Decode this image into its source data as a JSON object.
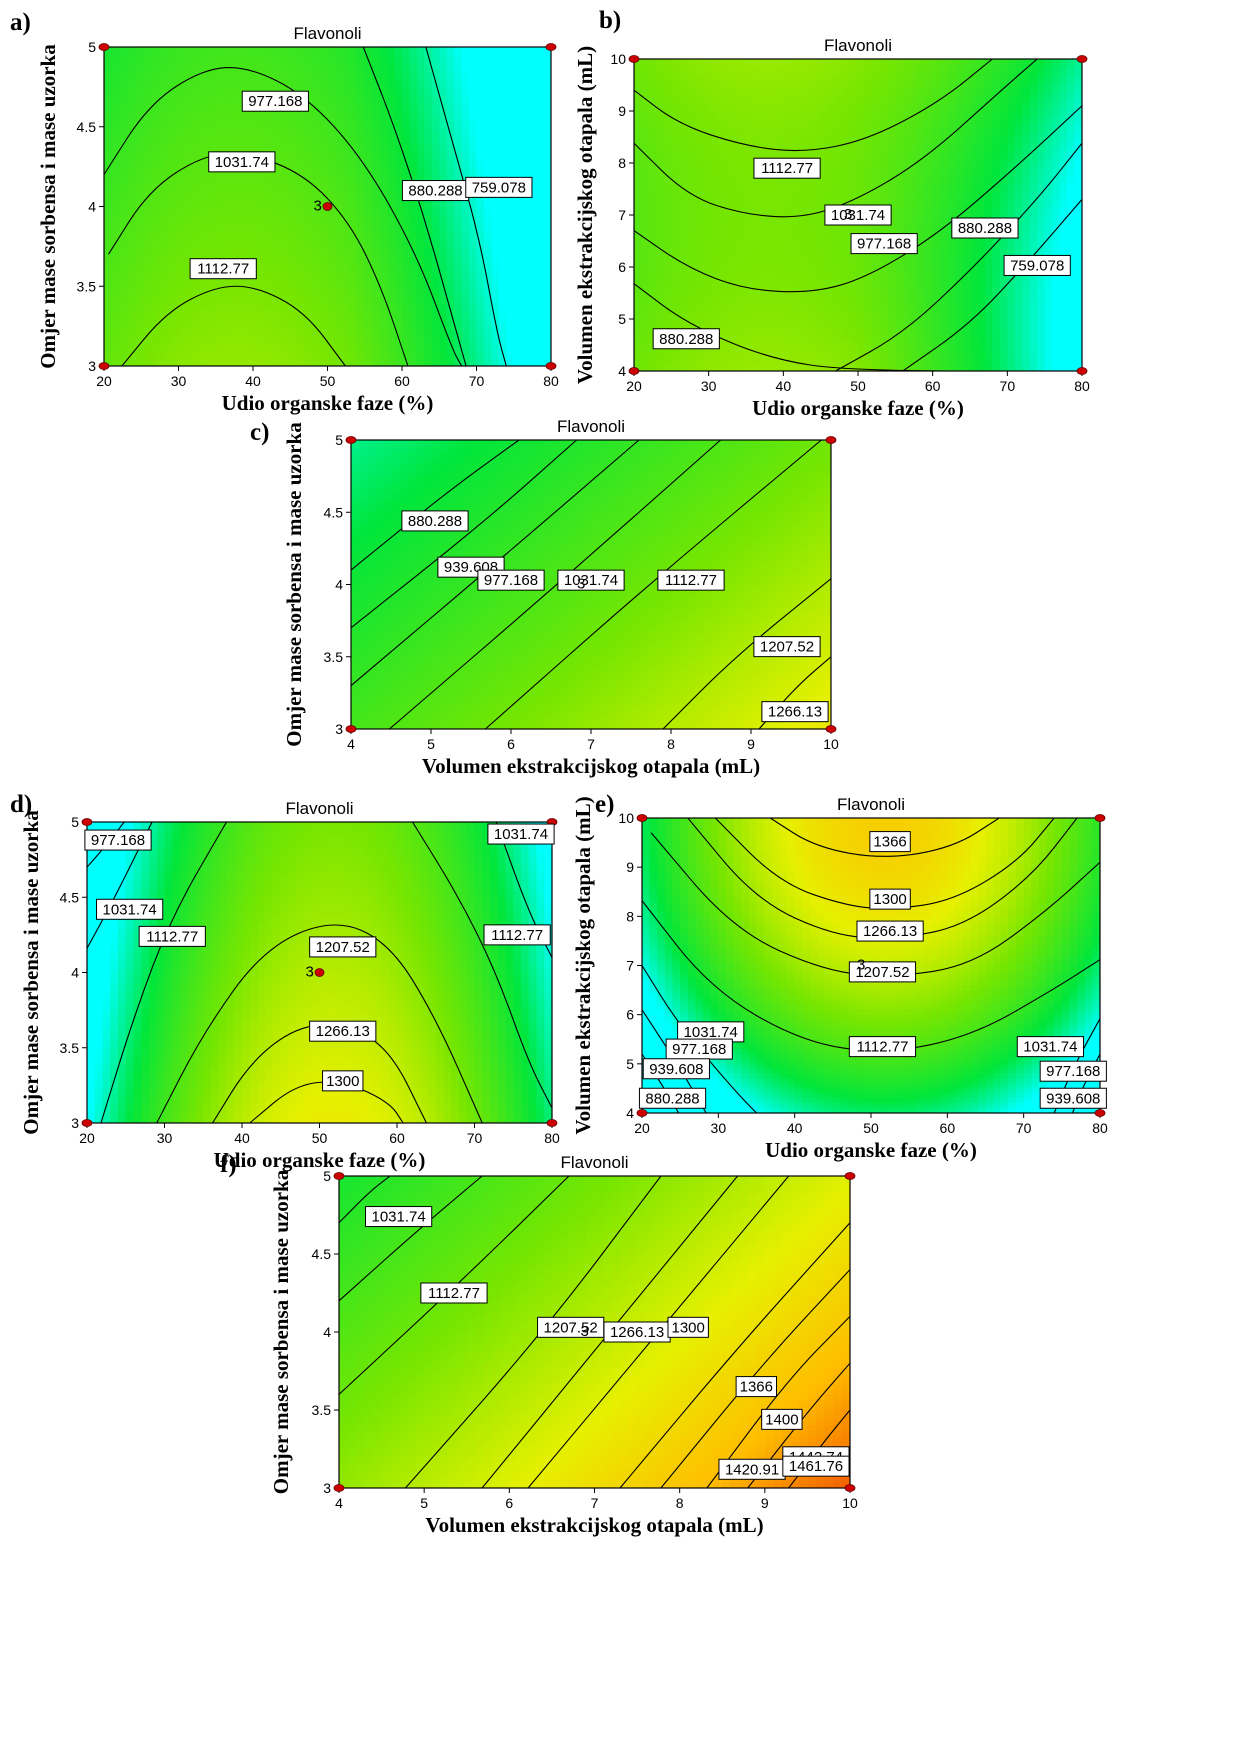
{
  "chart_data": [
    {
      "id": "a",
      "panel_letter": "a)",
      "type": "contour",
      "title": "Flavonoli",
      "xlabel": "Udio organske faze (%)",
      "ylabel": "Omjer mase sorbensa i mase uzorka",
      "xlim": [
        20,
        80
      ],
      "ylim": [
        3,
        5
      ],
      "xticks": [
        "20",
        "30",
        "40",
        "50",
        "60",
        "70",
        "80"
      ],
      "yticks": [
        "3",
        "3.5",
        "4",
        "4.5",
        "5"
      ],
      "contour_labels": [
        {
          "text": "977.168",
          "x": 43,
          "y": 4.66
        },
        {
          "text": "1031.74",
          "x": 38.5,
          "y": 4.28
        },
        {
          "text": "880.288",
          "x": 64.5,
          "y": 4.1
        },
        {
          "text": "759.078",
          "x": 73,
          "y": 4.12
        },
        {
          "text": "1112.77",
          "x": 36,
          "y": 3.61
        }
      ],
      "design_points": [
        [
          20,
          3
        ],
        [
          20,
          5
        ],
        [
          80,
          3
        ],
        [
          80,
          5
        ]
      ],
      "center_point": {
        "x": 50,
        "y": 4,
        "count": "3"
      }
    },
    {
      "id": "b",
      "panel_letter": "b)",
      "type": "contour",
      "title": "Flavonoli",
      "xlabel": "Udio organske faze (%)",
      "ylabel": "Volumen ekstrakcijskog otapala (mL)",
      "xlim": [
        20,
        80
      ],
      "ylim": [
        4,
        10
      ],
      "xticks": [
        "20",
        "30",
        "40",
        "50",
        "60",
        "70",
        "80"
      ],
      "yticks": [
        "4",
        "5",
        "6",
        "7",
        "8",
        "9",
        "10"
      ],
      "contour_labels": [
        {
          "text": "1112.77",
          "x": 40.5,
          "y": 7.9
        },
        {
          "text": "1031.74",
          "x": 50,
          "y": 7.0
        },
        {
          "text": "977.168",
          "x": 53.5,
          "y": 6.45
        },
        {
          "text": "880.288",
          "x": 67,
          "y": 6.75
        },
        {
          "text": "759.078",
          "x": 74,
          "y": 6.03
        },
        {
          "text": "880.288",
          "x": 27,
          "y": 4.62
        }
      ],
      "design_points": [
        [
          20,
          4
        ],
        [
          20,
          10
        ],
        [
          80,
          4
        ],
        [
          80,
          10
        ]
      ],
      "center_point": {
        "x": 50,
        "y": 7,
        "count": "3"
      }
    },
    {
      "id": "c",
      "panel_letter": "c)",
      "type": "contour",
      "title": "Flavonoli",
      "xlabel": "Volumen ekstrakcijskog otapala (mL)",
      "ylabel": "Omjer mase sorbensa i mase uzorka",
      "xlim": [
        4,
        10
      ],
      "ylim": [
        3,
        5
      ],
      "xticks": [
        "4",
        "5",
        "6",
        "7",
        "8",
        "9",
        "10"
      ],
      "yticks": [
        "3",
        "3.5",
        "4",
        "4.5",
        "5"
      ],
      "contour_labels": [
        {
          "text": "880.288",
          "x": 5.05,
          "y": 4.44
        },
        {
          "text": "939.608",
          "x": 5.5,
          "y": 4.12
        },
        {
          "text": "977.168",
          "x": 6.0,
          "y": 4.03
        },
        {
          "text": "1031.74",
          "x": 7.0,
          "y": 4.03
        },
        {
          "text": "1112.77",
          "x": 8.25,
          "y": 4.03
        },
        {
          "text": "1207.52",
          "x": 9.45,
          "y": 3.57
        },
        {
          "text": "1266.13",
          "x": 9.55,
          "y": 3.12
        }
      ],
      "design_points": [
        [
          4,
          3
        ],
        [
          4,
          5
        ],
        [
          10,
          3
        ],
        [
          10,
          5
        ]
      ],
      "center_point": {
        "x": 7,
        "y": 4,
        "count": "3"
      }
    },
    {
      "id": "d",
      "panel_letter": "d)",
      "type": "contour",
      "title": "Flavonoli",
      "xlabel": "Udio organske faze (%)",
      "ylabel": "Omjer mase sorbensa i mase uzorka",
      "xlim": [
        20,
        80
      ],
      "ylim": [
        3,
        5
      ],
      "xticks": [
        "20",
        "30",
        "40",
        "50",
        "60",
        "70",
        "80"
      ],
      "yticks": [
        "3",
        "3.5",
        "4",
        "4.5",
        "5"
      ],
      "contour_labels": [
        {
          "text": "977.168",
          "x": 24,
          "y": 4.88
        },
        {
          "text": "1031.74",
          "x": 25.5,
          "y": 4.42
        },
        {
          "text": "1112.77",
          "x": 31,
          "y": 4.24
        },
        {
          "text": "1207.52",
          "x": 53,
          "y": 4.17
        },
        {
          "text": "1266.13",
          "x": 53,
          "y": 3.61
        },
        {
          "text": "1300",
          "x": 53,
          "y": 3.28
        },
        {
          "text": "1112.77",
          "x": 75.5,
          "y": 4.25
        },
        {
          "text": "1031.74",
          "x": 76,
          "y": 4.92
        }
      ],
      "design_points": [
        [
          20,
          3
        ],
        [
          20,
          5
        ],
        [
          80,
          3
        ],
        [
          80,
          5
        ]
      ],
      "center_point": {
        "x": 50,
        "y": 4,
        "count": "3"
      }
    },
    {
      "id": "e",
      "panel_letter": "e)",
      "type": "contour",
      "title": "Flavonoli",
      "xlabel": "Udio organske faze (%)",
      "ylabel": "Volumen ekstrakcijskog otapala (mL)",
      "xlim": [
        20,
        80
      ],
      "ylim": [
        4,
        10
      ],
      "xticks": [
        "20",
        "30",
        "40",
        "50",
        "60",
        "70",
        "80"
      ],
      "yticks": [
        "4",
        "5",
        "6",
        "7",
        "8",
        "9",
        "10"
      ],
      "contour_labels": [
        {
          "text": "1366",
          "x": 52.5,
          "y": 9.52
        },
        {
          "text": "1300",
          "x": 52.5,
          "y": 8.35
        },
        {
          "text": "1266.13",
          "x": 52.5,
          "y": 7.7
        },
        {
          "text": "1207.52",
          "x": 51.5,
          "y": 6.87
        },
        {
          "text": "1112.77",
          "x": 51.5,
          "y": 5.35
        },
        {
          "text": "1031.74",
          "x": 29,
          "y": 5.65
        },
        {
          "text": "977.168",
          "x": 27.5,
          "y": 5.3
        },
        {
          "text": "939.608",
          "x": 24.5,
          "y": 4.9
        },
        {
          "text": "880.288",
          "x": 24,
          "y": 4.3
        },
        {
          "text": "1031.74",
          "x": 73.5,
          "y": 5.35
        },
        {
          "text": "977.168",
          "x": 76.5,
          "y": 4.85
        },
        {
          "text": "939.608",
          "x": 76.5,
          "y": 4.3
        }
      ],
      "design_points": [
        [
          20,
          4
        ],
        [
          20,
          10
        ],
        [
          80,
          4
        ],
        [
          80,
          10
        ]
      ],
      "center_point": {
        "x": 50,
        "y": 7,
        "count": "3"
      }
    },
    {
      "id": "f",
      "panel_letter": "f)",
      "type": "contour",
      "title": "Flavonoli",
      "xlabel": "Volumen ekstrakcijskog otapala (mL)",
      "ylabel": "Omjer mase sorbensa i mase uzorka",
      "xlim": [
        4,
        10
      ],
      "ylim": [
        3,
        5
      ],
      "xticks": [
        "4",
        "5",
        "6",
        "7",
        "8",
        "9",
        "10"
      ],
      "yticks": [
        "3",
        "3.5",
        "4",
        "4.5",
        "5"
      ],
      "contour_labels": [
        {
          "text": "1031.74",
          "x": 4.7,
          "y": 4.74
        },
        {
          "text": "1112.77",
          "x": 5.35,
          "y": 4.25
        },
        {
          "text": "1207.52",
          "x": 6.72,
          "y": 4.03
        },
        {
          "text": "1266.13",
          "x": 7.5,
          "y": 4.0
        },
        {
          "text": "1300",
          "x": 8.1,
          "y": 4.03
        },
        {
          "text": "1366",
          "x": 8.9,
          "y": 3.65
        },
        {
          "text": "1400",
          "x": 9.2,
          "y": 3.44
        },
        {
          "text": "1442.74",
          "x": 9.6,
          "y": 3.2
        },
        {
          "text": "1420.91",
          "x": 8.85,
          "y": 3.12
        },
        {
          "text": "1461.76",
          "x": 9.6,
          "y": 3.14
        }
      ],
      "design_points": [
        [
          4,
          3
        ],
        [
          4,
          5
        ],
        [
          10,
          3
        ],
        [
          10,
          5
        ]
      ],
      "center_point": {
        "x": 7,
        "y": 4,
        "count": "3"
      }
    }
  ]
}
